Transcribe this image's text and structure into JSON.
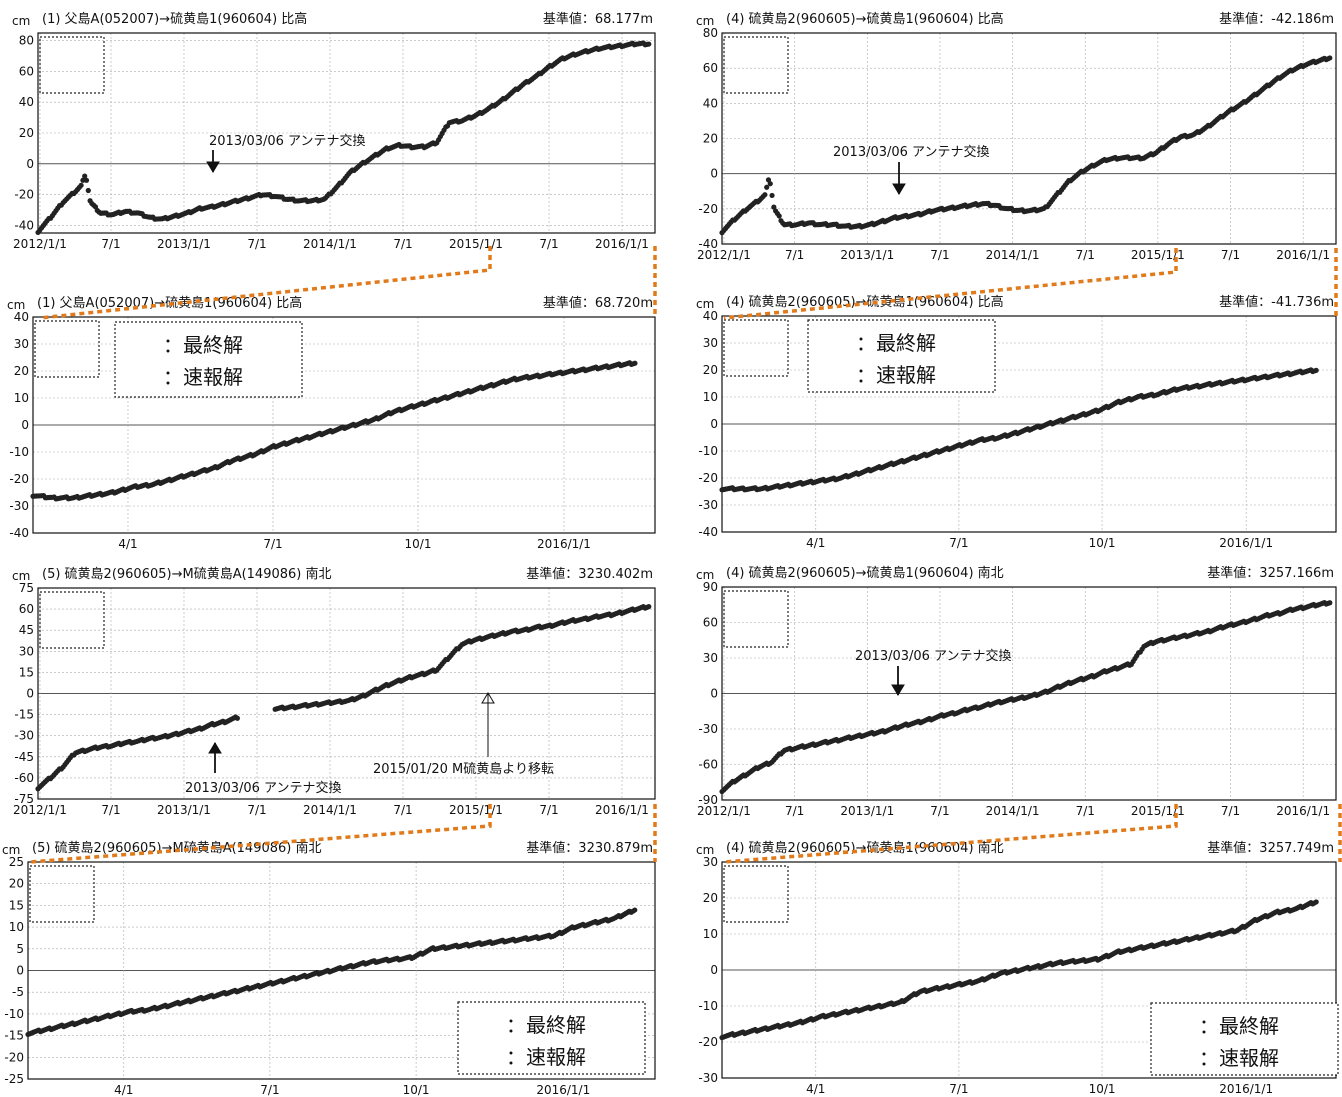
{
  "chart_data": [
    {
      "type": "scatter",
      "title": "(1) 父島A(052007)→硫黄島1(960604) 比高",
      "unit": "cm",
      "reference": "基準値：68.177m",
      "ylim": [
        -45,
        85
      ],
      "yticks": [
        80,
        60,
        40,
        20,
        0,
        -20,
        -40
      ],
      "xticks": [
        "2012/1/1",
        "7/1",
        "2013/1/1",
        "7/1",
        "2014/1/1",
        "7/1",
        "2015/1/1",
        "7/1",
        "2016/1/1"
      ],
      "xrange": [
        0,
        49.5
      ],
      "x": [
        0,
        1,
        2,
        3,
        3.5,
        3.8,
        4.2,
        5,
        6,
        7,
        8,
        9,
        10,
        11,
        12,
        13,
        14,
        15,
        16,
        17,
        18,
        19,
        20,
        21,
        22,
        23,
        24,
        25,
        26,
        27,
        28,
        29,
        30,
        31,
        32,
        33,
        34,
        35,
        36,
        37,
        38,
        39,
        40,
        41,
        42,
        43,
        44,
        45,
        46,
        47,
        48,
        49
      ],
      "y": [
        -44,
        -35,
        -25,
        -18,
        -14,
        -6,
        -25,
        -32,
        -33,
        -31,
        -32,
        -35,
        -36,
        -34,
        -32,
        -29,
        -28,
        -26,
        -24,
        -22,
        -20,
        -21,
        -23,
        -24,
        -24,
        -23,
        -15,
        -6,
        0,
        5,
        10,
        12,
        11,
        11,
        14,
        27,
        28,
        31,
        35,
        40,
        46,
        52,
        57,
        63,
        68,
        71,
        73,
        75,
        76,
        77,
        78,
        78
      ],
      "annotations": [
        {
          "text": "2013/03/06 アンテナ交換",
          "x": 13.2
        }
      ]
    },
    {
      "type": "scatter",
      "title": "(1) 父島A(052007)→硫黄島1(960604) 比高",
      "unit": "cm",
      "reference": "基準値：68.720m",
      "ylim": [
        -40,
        40
      ],
      "yticks": [
        40,
        30,
        20,
        10,
        0,
        -10,
        -20,
        -30,
        -40
      ],
      "xticks": [
        "4/1",
        "7/1",
        "10/1",
        "2016/1/1"
      ],
      "xrange": [
        0,
        15.5
      ],
      "x": [
        0,
        0.5,
        1,
        1.5,
        2,
        2.5,
        3,
        3.5,
        4,
        4.5,
        5,
        5.5,
        6,
        6.5,
        7,
        7.5,
        8,
        8.5,
        9,
        9.5,
        10,
        10.5,
        11,
        11.5,
        12,
        12.5,
        13,
        13.5,
        14,
        14.5,
        15
      ],
      "y": [
        -26,
        -27,
        -27,
        -26,
        -25,
        -23,
        -22,
        -20,
        -18,
        -16,
        -13,
        -11,
        -8,
        -6,
        -4,
        -2,
        0,
        2,
        5,
        7,
        9,
        11,
        13,
        15,
        17,
        18,
        19,
        20,
        21,
        22,
        23
      ],
      "legend": [
        "：最終解",
        "：速報解"
      ]
    },
    {
      "type": "scatter",
      "title": "(4) 硫黄島2(960605)→硫黄島1(960604) 比高",
      "unit": "cm",
      "reference": "基準値：-42.186m",
      "ylim": [
        -40,
        80
      ],
      "yticks": [
        80,
        60,
        40,
        20,
        0,
        -20,
        -40
      ],
      "xticks": [
        "2012/1/1",
        "7/1",
        "2013/1/1",
        "7/1",
        "2014/1/1",
        "7/1",
        "2015/1/1",
        "7/1",
        "2016/1/1"
      ],
      "xrange": [
        0,
        49.5
      ],
      "x": [
        0,
        1,
        2,
        3,
        3.5,
        3.8,
        4.2,
        5,
        6,
        7,
        8,
        9,
        10,
        11,
        12,
        13,
        14,
        15,
        16,
        17,
        18,
        19,
        20,
        21,
        22,
        23,
        24,
        25,
        26,
        27,
        28,
        29,
        30,
        31,
        32,
        33,
        34,
        35,
        36,
        37,
        38,
        39,
        40,
        41,
        42,
        43,
        44,
        45,
        46,
        47,
        48,
        49
      ],
      "y": [
        -33,
        -26,
        -20,
        -15,
        -12,
        -1,
        -20,
        -29,
        -29,
        -28,
        -29,
        -29,
        -30,
        -30,
        -29,
        -27,
        -25,
        -24,
        -23,
        -21,
        -20,
        -19,
        -18,
        -17,
        -18,
        -20,
        -21,
        -21,
        -20,
        -12,
        -4,
        1,
        5,
        8,
        9,
        9,
        9,
        12,
        17,
        21,
        22,
        26,
        31,
        36,
        40,
        45,
        50,
        55,
        59,
        62,
        64,
        66
      ],
      "annotations": [
        {
          "text": "2013/03/06 アンテナ交換",
          "x": 13.2
        }
      ]
    },
    {
      "type": "scatter",
      "title": "(4) 硫黄島2(960605)→硫黄島1(960604) 比高",
      "unit": "cm",
      "reference": "基準値：-41.736m",
      "ylim": [
        -40,
        40
      ],
      "yticks": [
        40,
        30,
        20,
        10,
        0,
        -10,
        -20,
        -30,
        -40
      ],
      "xticks": [
        "4/1",
        "7/1",
        "10/1",
        "2016/1/1"
      ],
      "xrange": [
        0,
        15.5
      ],
      "x": [
        0,
        0.5,
        1,
        1.5,
        2,
        2.5,
        3,
        3.5,
        4,
        4.5,
        5,
        5.5,
        6,
        6.5,
        7,
        7.5,
        8,
        8.5,
        9,
        9.5,
        10,
        10.5,
        11,
        11.5,
        12,
        12.5,
        13,
        13.5,
        14,
        14.5,
        15
      ],
      "y": [
        -24,
        -24,
        -24,
        -23,
        -22,
        -21,
        -20,
        -18,
        -16,
        -14,
        -12,
        -10,
        -8,
        -6,
        -5,
        -3,
        -1,
        1,
        3,
        5,
        8,
        10,
        11,
        13,
        14,
        15,
        16,
        17,
        18,
        19,
        20
      ],
      "legend": [
        "：最終解",
        "：速報解"
      ]
    },
    {
      "type": "scatter",
      "title": "(5) 硫黄島2(960605)→M硫黄島A(149086) 南北",
      "unit": "cm",
      "reference": "基準値：3230.402m",
      "ylim": [
        -75,
        75
      ],
      "yticks": [
        75,
        60,
        45,
        30,
        15,
        0,
        -15,
        -30,
        -45,
        -60,
        -75
      ],
      "xticks": [
        "2012/1/1",
        "7/1",
        "2013/1/1",
        "7/1",
        "2014/1/1",
        "7/1",
        "2015/1/1",
        "7/1",
        "2016/1/1"
      ],
      "xrange": [
        0,
        49.5
      ],
      "x": [
        0,
        1,
        2,
        3,
        4,
        5,
        6,
        7,
        8,
        9,
        10,
        11,
        12,
        13,
        14,
        15,
        16,
        17,
        18,
        19,
        20,
        21,
        22,
        23,
        24,
        25,
        26,
        27,
        28,
        29,
        30,
        31,
        32,
        33,
        34,
        35,
        36,
        37,
        38,
        39,
        40,
        41,
        42,
        43,
        44,
        45,
        46,
        47,
        48,
        49
      ],
      "y": [
        -67,
        -60,
        -52,
        -42,
        -40,
        -38,
        -37,
        -35,
        -34,
        -32,
        -31,
        -29,
        -27,
        -25,
        -22,
        -20,
        -17,
        null,
        null,
        -11,
        -10,
        -9,
        -8,
        -7,
        -6,
        -5,
        -2,
        2,
        6,
        9,
        12,
        14,
        17,
        26,
        35,
        38,
        40,
        42,
        44,
        45,
        47,
        48,
        50,
        52,
        53,
        55,
        56,
        58,
        60,
        62
      ],
      "annotations": [
        {
          "text": "2013/03/06 アンテナ交換",
          "x": 13.2
        },
        {
          "text": "2015/01/20 M硫黄島より移転",
          "x": 33.8
        }
      ]
    },
    {
      "type": "scatter",
      "title": "(5) 硫黄島2(960605)→M硫黄島A(149086) 南北",
      "unit": "cm",
      "reference": "基準値：3230.879m",
      "ylim": [
        -25,
        25
      ],
      "yticks": [
        25,
        20,
        15,
        10,
        5,
        0,
        -5,
        -10,
        -15,
        -20,
        -25
      ],
      "xticks": [
        "4/1",
        "7/1",
        "10/1",
        "2016/1/1"
      ],
      "xrange": [
        0,
        15.5
      ],
      "x": [
        0,
        0.5,
        1,
        1.5,
        2,
        2.5,
        3,
        3.5,
        4,
        4.5,
        5,
        5.5,
        6,
        6.5,
        7,
        7.5,
        8,
        8.5,
        9,
        9.5,
        10,
        10.5,
        11,
        11.5,
        12,
        12.5,
        13,
        13.5,
        14,
        14.5,
        15
      ],
      "y": [
        -14.5,
        -13.5,
        -12.5,
        -11.5,
        -10.5,
        -9.5,
        -9,
        -8,
        -7,
        -6,
        -5,
        -4,
        -3,
        -2,
        -1,
        0,
        1,
        2,
        2.5,
        3,
        5,
        5.5,
        6,
        6.5,
        7,
        7.5,
        8,
        10,
        11,
        12,
        14
      ],
      "legend": [
        "：最終解",
        "：速報解"
      ]
    },
    {
      "type": "scatter",
      "title": "(4) 硫黄島2(960605)→硫黄島1(960604) 南北",
      "unit": "cm",
      "reference": "基準値：3257.166m",
      "ylim": [
        -90,
        90
      ],
      "yticks": [
        90,
        60,
        30,
        0,
        -30,
        -60,
        -90
      ],
      "xticks": [
        "2012/1/1",
        "7/1",
        "2013/1/1",
        "7/1",
        "2014/1/1",
        "7/1",
        "2015/1/1",
        "7/1",
        "2016/1/1"
      ],
      "xrange": [
        0,
        49.5
      ],
      "x": [
        0,
        1,
        2,
        3,
        4,
        5,
        6,
        7,
        8,
        9,
        10,
        11,
        12,
        13,
        14,
        15,
        16,
        17,
        18,
        19,
        20,
        21,
        22,
        23,
        24,
        25,
        26,
        27,
        28,
        29,
        30,
        31,
        32,
        33,
        34,
        35,
        36,
        37,
        38,
        39,
        40,
        41,
        42,
        43,
        44,
        45,
        46,
        47,
        48,
        49
      ],
      "y": [
        -82,
        -74,
        -68,
        -62,
        -58,
        -48,
        -46,
        -44,
        -42,
        -40,
        -38,
        -36,
        -34,
        -32,
        -29,
        -26,
        -24,
        -21,
        -18,
        -16,
        -13,
        -11,
        -8,
        -6,
        -4,
        -2,
        1,
        5,
        9,
        12,
        15,
        19,
        22,
        25,
        40,
        44,
        46,
        48,
        50,
        52,
        55,
        58,
        60,
        63,
        66,
        68,
        71,
        73,
        75,
        77
      ],
      "annotations": [
        {
          "text": "2013/03/06 アンテナ交換",
          "x": 13.2
        }
      ]
    },
    {
      "type": "scatter",
      "title": "(4) 硫黄島2(960605)→硫黄島1(960604) 南北",
      "unit": "cm",
      "reference": "基準値：3257.749m",
      "ylim": [
        -30,
        30
      ],
      "yticks": [
        30,
        20,
        10,
        0,
        -10,
        -20,
        -30
      ],
      "xticks": [
        "4/1",
        "7/1",
        "10/1",
        "2016/1/1"
      ],
      "xrange": [
        0,
        15.5
      ],
      "x": [
        0,
        0.5,
        1,
        1.5,
        2,
        2.5,
        3,
        3.5,
        4,
        4.5,
        5,
        5.5,
        6,
        6.5,
        7,
        7.5,
        8,
        8.5,
        9,
        9.5,
        10,
        10.5,
        11,
        11.5,
        12,
        12.5,
        13,
        13.5,
        14,
        14.5,
        15
      ],
      "y": [
        -18.5,
        -17.5,
        -16.5,
        -15.5,
        -14.5,
        -13,
        -12,
        -11,
        -10,
        -9,
        -6,
        -5,
        -4,
        -3,
        -1,
        0,
        1,
        2,
        2.5,
        3,
        5,
        6,
        7,
        8,
        9,
        10,
        11,
        14,
        16,
        17,
        19
      ],
      "legend": [
        "：最終解",
        "：速報解"
      ]
    }
  ],
  "colors": {
    "marker": "#222222",
    "axis": "#111111",
    "grid": "#aaaaaa",
    "connector": "#e07a1a"
  }
}
